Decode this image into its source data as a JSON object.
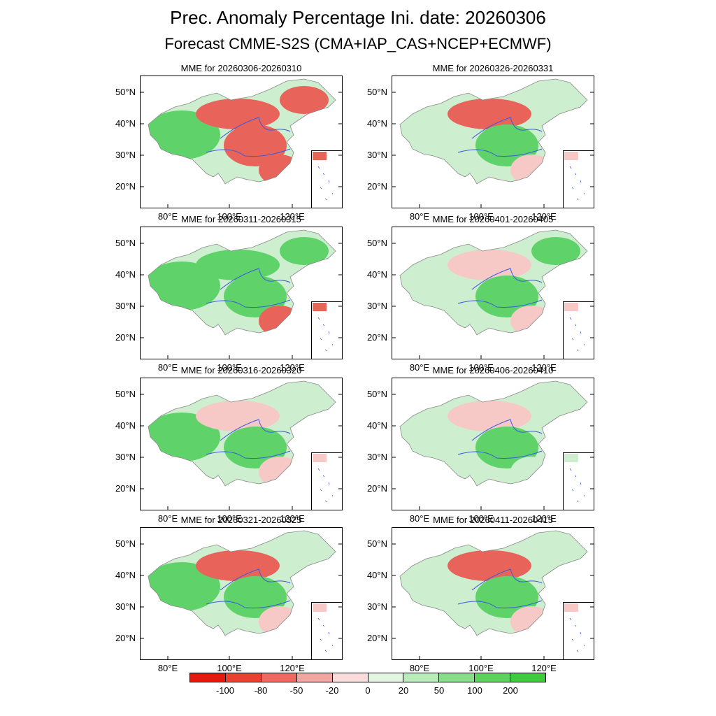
{
  "title": "Prec. Anomaly Percentage Ini. date: 20260306",
  "subtitle": "Forecast CMME-S2S (CMA+IAP_CAS+NCEP+ECMWF)",
  "lat_labels": [
    "50°N",
    "40°N",
    "30°N",
    "20°N"
  ],
  "lon_labels": [
    "80°E",
    "100°E",
    "120°E"
  ],
  "panels": [
    {
      "title": "MME for 20260306-20260310",
      "west": "green",
      "north": "red",
      "center": "red",
      "south": "red",
      "northeast": "red"
    },
    {
      "title": "MME for 20260311-20260315",
      "west": "green",
      "north": "green",
      "center": "green",
      "south": "red",
      "northeast": "green"
    },
    {
      "title": "MME for 20260316-20260320",
      "west": "green",
      "north": "lightred",
      "center": "green",
      "south": "lightred",
      "northeast": "lightgreen"
    },
    {
      "title": "MME for 20260321-20260325",
      "west": "green",
      "north": "red",
      "center": "green",
      "south": "lightred",
      "northeast": "lightgreen"
    },
    {
      "title": "MME for 20260326-20260331",
      "west": "lightgreen",
      "north": "red",
      "center": "green",
      "south": "lightred",
      "northeast": "lightgreen"
    },
    {
      "title": "MME for 20260401-20260405",
      "west": "lightgreen",
      "north": "lightred",
      "center": "green",
      "south": "lightred",
      "northeast": "green"
    },
    {
      "title": "MME for 20260406-20260410",
      "west": "lightgreen",
      "north": "lightred",
      "center": "green",
      "south": "lightgreen",
      "northeast": "lightgreen"
    },
    {
      "title": "MME for 20260411-20260415",
      "west": "lightgreen",
      "north": "red",
      "center": "green",
      "south": "lightred",
      "northeast": "lightgreen"
    }
  ],
  "colors": {
    "red": "#e8645a",
    "lightred": "#f6c9c6",
    "green": "#5fd36a",
    "lightgreen": "#cdefd0",
    "river": "#3b5bdb"
  },
  "colorbar": {
    "colors": [
      "#e31a0c",
      "#e8432f",
      "#ec6a5e",
      "#f3a5a0",
      "#fbdcdc",
      "#e2f6e2",
      "#b8ecb8",
      "#86df86",
      "#5cd35c",
      "#3ccc3c"
    ],
    "labels": [
      "-100",
      "-80",
      "-50",
      "-20",
      "0",
      "20",
      "50",
      "100",
      "200"
    ]
  }
}
